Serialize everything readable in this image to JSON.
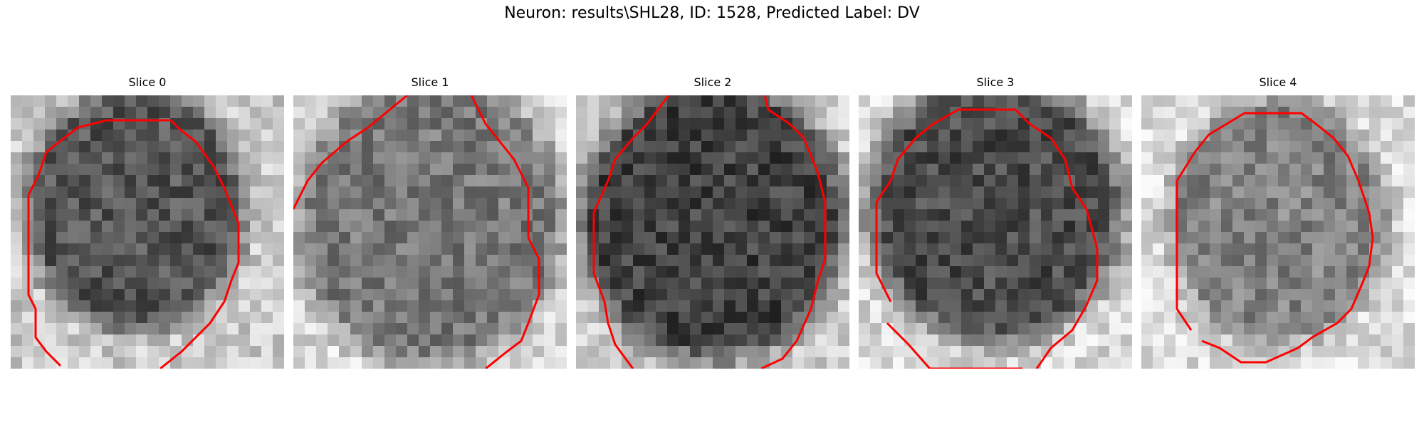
{
  "figure": {
    "title": "Neuron: results\\SHL28, ID: 1528, Predicted Label: DV"
  },
  "contour_color": "#ff0000",
  "colormap": "grayscale",
  "slices": [
    {
      "title": "Slice 0"
    },
    {
      "title": "Slice 1"
    },
    {
      "title": "Slice 2"
    },
    {
      "title": "Slice 3"
    },
    {
      "title": "Slice 4"
    }
  ]
}
